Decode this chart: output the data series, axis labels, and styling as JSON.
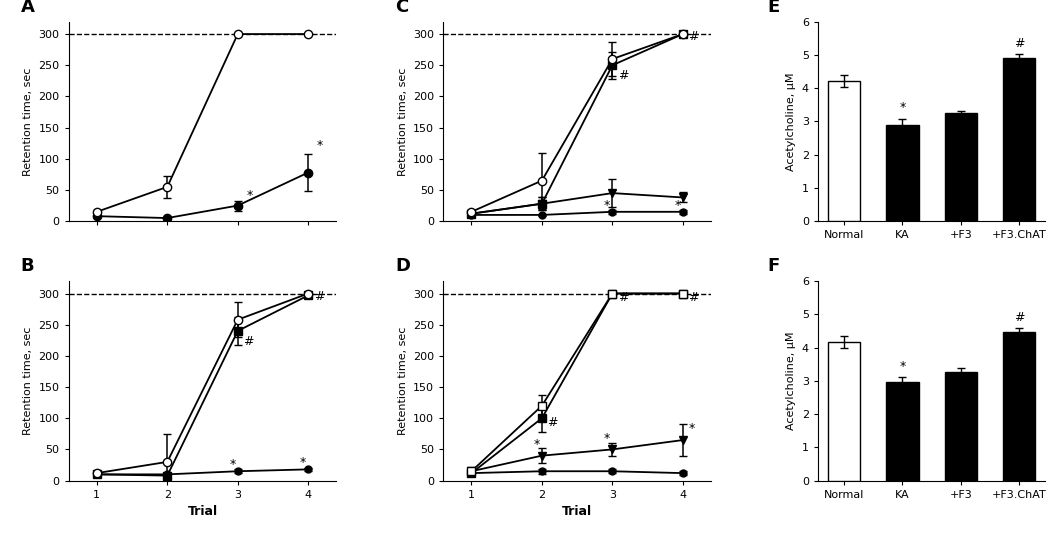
{
  "A": {
    "open_circle": {
      "y": [
        15,
        55,
        300,
        300
      ],
      "yerr": [
        3,
        18,
        0,
        0
      ]
    },
    "filled_circle": {
      "y": [
        8,
        5,
        25,
        78
      ],
      "yerr": [
        2,
        2,
        8,
        30
      ]
    }
  },
  "B": {
    "open_circle": {
      "y": [
        12,
        30,
        258,
        300
      ],
      "yerr": [
        2,
        45,
        28,
        2
      ]
    },
    "filled_square": {
      "y": [
        10,
        8,
        240,
        297
      ],
      "yerr": [
        2,
        2,
        22,
        4
      ]
    },
    "filled_circle": {
      "y": [
        10,
        10,
        15,
        18
      ],
      "yerr": [
        2,
        2,
        3,
        3
      ]
    }
  },
  "C": {
    "open_circle": {
      "y": [
        15,
        65,
        260,
        300
      ],
      "yerr": [
        3,
        45,
        28,
        2
      ]
    },
    "filled_square": {
      "y": [
        12,
        28,
        250,
        300
      ],
      "yerr": [
        3,
        10,
        22,
        2
      ]
    },
    "filled_triangle": {
      "y": [
        12,
        28,
        45,
        38
      ],
      "yerr": [
        3,
        10,
        22,
        8
      ]
    },
    "filled_circle": {
      "y": [
        10,
        10,
        15,
        15
      ],
      "yerr": [
        2,
        2,
        3,
        3
      ]
    }
  },
  "D": {
    "open_square": {
      "y": [
        15,
        120,
        300,
        300
      ],
      "yerr": [
        3,
        18,
        0,
        0
      ]
    },
    "filled_square": {
      "y": [
        12,
        100,
        300,
        300
      ],
      "yerr": [
        3,
        22,
        0,
        0
      ]
    },
    "filled_triangle": {
      "y": [
        15,
        40,
        50,
        65
      ],
      "yerr": [
        3,
        12,
        10,
        25
      ]
    },
    "filled_circle": {
      "y": [
        12,
        15,
        15,
        12
      ],
      "yerr": [
        2,
        4,
        3,
        3
      ]
    }
  },
  "bar_E": {
    "values": [
      4.22,
      2.88,
      3.25,
      4.92
    ],
    "errors": [
      0.18,
      0.18,
      0.06,
      0.12
    ],
    "colors": [
      "white",
      "black",
      "black",
      "black"
    ],
    "categories": [
      "Normal",
      "KA",
      "+F3",
      "+F3.ChAT"
    ]
  },
  "bar_F": {
    "values": [
      4.18,
      2.95,
      3.28,
      4.48
    ],
    "errors": [
      0.18,
      0.15,
      0.12,
      0.12
    ],
    "colors": [
      "white",
      "black",
      "black",
      "black"
    ],
    "categories": [
      "Normal",
      "KA",
      "+F3",
      "+F3.ChAT"
    ]
  },
  "x": [
    1,
    2,
    3,
    4
  ],
  "xlim": [
    0.6,
    4.4
  ],
  "ylim": [
    0,
    320
  ],
  "yticks": [
    0,
    50,
    100,
    150,
    200,
    250,
    300
  ],
  "ylabel_line": "Retention time, sec",
  "xlabel": "Trial",
  "ylabel_bar": "Acetylcholine, μM",
  "ylim_bar": [
    0,
    6
  ],
  "yticks_bar": [
    0,
    1,
    2,
    3,
    4,
    5,
    6
  ]
}
